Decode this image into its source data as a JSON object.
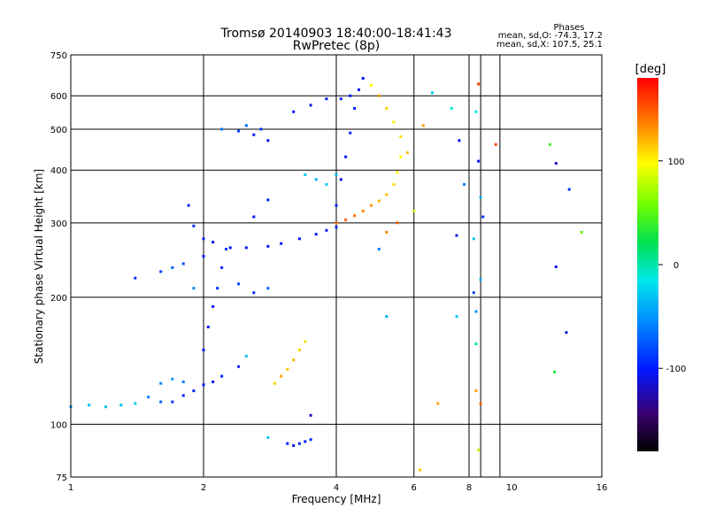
{
  "chart_data": {
    "type": "scatter",
    "title": "Tromsø 20140903 18:40:00-18:41:43",
    "subtitle": "RwPretec (8p)",
    "stats": {
      "heading": "Phases",
      "line1": "mean, sd,O: -74.3, 17.2",
      "line2": "mean, sd,X: 107.5, 25.1"
    },
    "xlabel": "Frequency [MHz]",
    "ylabel": "Stationary phase Virtual Height [km]",
    "x_scale": "log",
    "y_scale": "log",
    "xlim": [
      1,
      16
    ],
    "ylim": [
      75,
      750
    ],
    "x_ticks": [
      1,
      2,
      4,
      6,
      8,
      10,
      16
    ],
    "y_ticks": [
      75,
      100,
      200,
      300,
      400,
      500,
      600,
      750
    ],
    "x_gridlines": [
      2,
      4,
      6,
      8,
      8.5,
      9.4
    ],
    "y_gridlines": [
      100,
      200,
      300,
      400,
      500,
      600
    ],
    "grid": true,
    "colorbar": {
      "label": "[deg]",
      "range": [
        -180,
        180
      ],
      "ticks": [
        100,
        0,
        -100
      ]
    },
    "series": [
      {
        "values": [
          [
            1.0,
            110,
            -40
          ],
          [
            1.1,
            111,
            -35
          ],
          [
            1.2,
            110,
            -30
          ],
          [
            1.3,
            111,
            -35
          ],
          [
            1.4,
            112,
            -30
          ],
          [
            1.5,
            116,
            -60
          ],
          [
            1.6,
            113,
            -70
          ],
          [
            1.7,
            113,
            -90
          ],
          [
            1.8,
            117,
            -95
          ],
          [
            1.9,
            120,
            -95
          ],
          [
            2.0,
            124,
            -100
          ],
          [
            2.1,
            126,
            -100
          ],
          [
            2.2,
            130,
            -95
          ],
          [
            2.4,
            137,
            -95
          ],
          [
            2.5,
            145,
            -30
          ]
        ]
      },
      {
        "values": [
          [
            1.85,
            330,
            -95
          ],
          [
            1.9,
            295,
            -90
          ],
          [
            2.0,
            275,
            -95
          ],
          [
            2.1,
            270,
            -100
          ],
          [
            2.3,
            262,
            -100
          ],
          [
            2.5,
            262,
            -105
          ],
          [
            2.8,
            264,
            -100
          ],
          [
            3.0,
            268,
            -100
          ],
          [
            3.3,
            275,
            -100
          ],
          [
            3.6,
            282,
            -100
          ],
          [
            3.8,
            288,
            -95
          ],
          [
            4.0,
            293,
            -95
          ]
        ]
      },
      {
        "values": [
          [
            4.0,
            300,
            145
          ],
          [
            4.2,
            305,
            150
          ],
          [
            4.4,
            312,
            145
          ],
          [
            4.6,
            320,
            140
          ],
          [
            4.8,
            330,
            135
          ],
          [
            5.0,
            338,
            125
          ],
          [
            5.2,
            350,
            120
          ],
          [
            5.4,
            370,
            110
          ],
          [
            5.5,
            395,
            105
          ],
          [
            5.6,
            430,
            100
          ]
        ]
      },
      {
        "values": [
          [
            4.0,
            330,
            -95
          ],
          [
            4.1,
            380,
            -110
          ],
          [
            4.2,
            430,
            -100
          ],
          [
            4.3,
            490,
            -95
          ],
          [
            4.4,
            560,
            -95
          ],
          [
            4.5,
            620,
            -100
          ],
          [
            4.6,
            660,
            -100
          ],
          [
            4.3,
            600,
            -100
          ],
          [
            4.1,
            590,
            -95
          ],
          [
            3.8,
            590,
            -100
          ],
          [
            3.5,
            570,
            -105
          ],
          [
            3.2,
            550,
            -100
          ]
        ]
      },
      {
        "values": [
          [
            2.2,
            500,
            -60
          ],
          [
            2.4,
            495,
            -80
          ],
          [
            2.6,
            485,
            -95
          ],
          [
            2.8,
            470,
            -100
          ],
          [
            2.5,
            510,
            -70
          ],
          [
            2.7,
            500,
            -90
          ],
          [
            3.4,
            390,
            -30
          ],
          [
            3.6,
            380,
            -35
          ],
          [
            3.8,
            370,
            -25
          ],
          [
            4.0,
            390,
            -35
          ]
        ]
      },
      {
        "values": [
          [
            2.0,
            150,
            -100
          ],
          [
            2.05,
            170,
            -105
          ],
          [
            2.1,
            190,
            -100
          ],
          [
            2.15,
            210,
            -95
          ],
          [
            2.2,
            235,
            -95
          ],
          [
            2.25,
            260,
            -90
          ],
          [
            2.4,
            215,
            -80
          ],
          [
            2.6,
            205,
            -90
          ],
          [
            2.8,
            210,
            -70
          ],
          [
            2.6,
            310,
            -100
          ],
          [
            2.8,
            340,
            -95
          ]
        ]
      },
      {
        "values": [
          [
            1.4,
            222,
            -90
          ],
          [
            1.6,
            230,
            -85
          ],
          [
            1.8,
            240,
            -80
          ],
          [
            1.7,
            235,
            -70
          ],
          [
            2.0,
            250,
            -100
          ],
          [
            1.9,
            210,
            -55
          ],
          [
            1.6,
            125,
            -55
          ],
          [
            1.7,
            128,
            -50
          ],
          [
            1.8,
            126,
            -60
          ]
        ]
      },
      {
        "values": [
          [
            2.9,
            125,
            115
          ],
          [
            3.1,
            135,
            120
          ],
          [
            3.2,
            142,
            125
          ],
          [
            3.3,
            150,
            115
          ],
          [
            3.4,
            157,
            110
          ],
          [
            3.0,
            130,
            130
          ]
        ]
      },
      {
        "values": [
          [
            3.1,
            90,
            -100
          ],
          [
            3.2,
            89,
            -105
          ],
          [
            3.3,
            90,
            -95
          ],
          [
            3.4,
            91,
            -100
          ],
          [
            3.5,
            92,
            -95
          ],
          [
            2.8,
            93,
            -30
          ]
        ]
      },
      {
        "values": [
          [
            4.8,
            635,
            100
          ],
          [
            5.0,
            600,
            130
          ],
          [
            5.2,
            560,
            115
          ],
          [
            5.4,
            520,
            105
          ],
          [
            5.6,
            480,
            110
          ],
          [
            5.8,
            440,
            120
          ],
          [
            5.5,
            300,
            150
          ],
          [
            5.2,
            285,
            140
          ],
          [
            6.0,
            320,
            80
          ],
          [
            6.3,
            510,
            130
          ],
          [
            6.6,
            610,
            -30
          ],
          [
            7.3,
            560,
            -10
          ],
          [
            7.6,
            470,
            -100
          ],
          [
            7.8,
            370,
            -60
          ],
          [
            8.4,
            640,
            160
          ],
          [
            8.3,
            550,
            -10
          ],
          [
            8.4,
            420,
            -100
          ],
          [
            8.5,
            345,
            -40
          ],
          [
            8.6,
            310,
            -90
          ],
          [
            7.5,
            280,
            -110
          ],
          [
            8.2,
            275,
            -30
          ],
          [
            9.2,
            460,
            160
          ],
          [
            12.2,
            460,
            40
          ],
          [
            12.6,
            415,
            -120
          ],
          [
            13.5,
            360,
            -90
          ],
          [
            14.4,
            285,
            50
          ],
          [
            12.6,
            236,
            -110
          ],
          [
            13.3,
            165,
            -110
          ],
          [
            12.5,
            133,
            30
          ],
          [
            8.3,
            120,
            130
          ],
          [
            8.5,
            112,
            150
          ],
          [
            6.8,
            112,
            130
          ],
          [
            7.5,
            180,
            -30
          ],
          [
            8.3,
            185,
            -50
          ],
          [
            8.3,
            155,
            0
          ],
          [
            8.4,
            87,
            80
          ],
          [
            6.2,
            78,
            120
          ],
          [
            5.2,
            180,
            -40
          ],
          [
            5.0,
            260,
            -60
          ],
          [
            3.5,
            105,
            -120
          ],
          [
            8.2,
            205,
            -80
          ],
          [
            8.5,
            220,
            -40
          ]
        ]
      }
    ]
  }
}
